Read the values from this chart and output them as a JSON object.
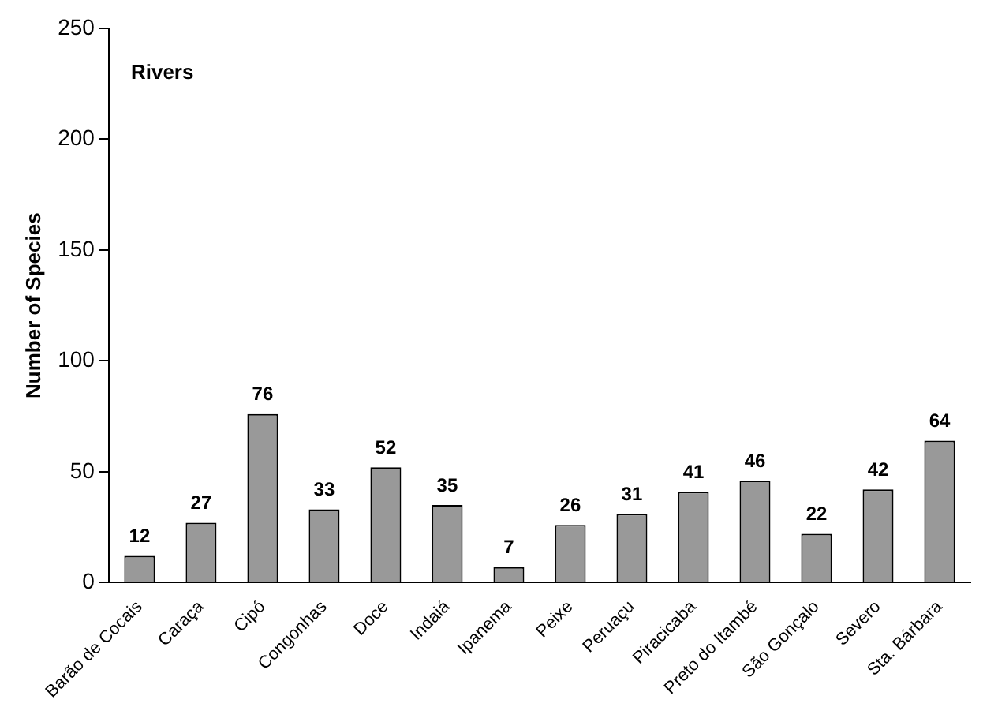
{
  "chart_data": {
    "type": "bar",
    "title": "Rivers",
    "ylabel": "Number of Species",
    "categories": [
      "Barão de Cocais",
      "Caraça",
      "Cipó",
      "Congonhas",
      "Doce",
      "Indaiá",
      "Ipanema",
      "Peixe",
      "Peruaçu",
      "Piracicaba",
      "Preto do Itambé",
      "São Gonçalo",
      "Severo",
      "Sta. Bárbara"
    ],
    "values": [
      12,
      27,
      76,
      33,
      52,
      35,
      7,
      26,
      31,
      41,
      46,
      22,
      42,
      64
    ],
    "color": "#999999",
    "ylim": [
      0,
      250
    ],
    "yticks": [
      0,
      50,
      100,
      150,
      200,
      250
    ],
    "grid": false,
    "legend": false,
    "data_labels": true
  }
}
